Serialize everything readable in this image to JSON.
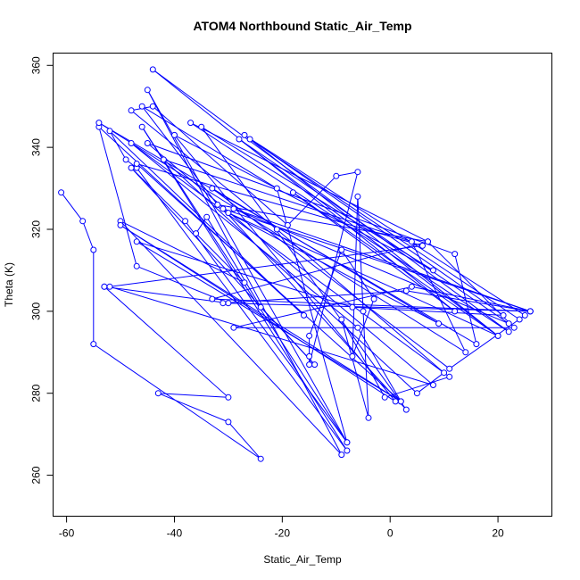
{
  "chart_data": {
    "type": "line",
    "title": "ATOM4 Northbound Static_Air_Temp",
    "xlabel": "Static_Air_Temp",
    "ylabel": "Theta (K)",
    "xlim": [
      -62.5,
      30
    ],
    "ylim": [
      250,
      363
    ],
    "x_ticks": [
      -60,
      -40,
      -20,
      0,
      20
    ],
    "y_ticks": [
      260,
      280,
      300,
      320,
      340,
      360
    ],
    "x_tick_labels": [
      "-60",
      "-40",
      "-20",
      "0",
      "20"
    ],
    "y_tick_labels": [
      "260",
      "280",
      "300",
      "320",
      "340",
      "360"
    ],
    "grid": false,
    "legend": "none",
    "marker": "open-circle",
    "color": "#0000ff",
    "series": [
      {
        "x": [
          -61,
          -57,
          -55,
          -55,
          -24,
          -30,
          -43,
          -30,
          -53,
          -53,
          -30,
          -47,
          -54,
          -16,
          -52,
          -49,
          -47,
          -8,
          -46,
          -8,
          -45,
          -9,
          -50,
          -27,
          -36,
          -34,
          -24,
          -14,
          -48,
          -38,
          -8,
          -21,
          -46,
          -32,
          7,
          -33,
          26,
          3,
          -31,
          26,
          4,
          -29,
          23,
          7,
          -37,
          22,
          -44,
          12,
          -18,
          20,
          -30,
          9,
          -33,
          11,
          25,
          -27,
          21,
          -7,
          -47,
          2,
          -6,
          -48,
          11,
          -1,
          -9,
          -4,
          -5,
          -6,
          -7,
          -3,
          -9,
          -15,
          -15,
          -15,
          -6,
          -10,
          -19,
          -44,
          -48,
          -21,
          10,
          5,
          -42,
          4,
          14,
          -54,
          16,
          12,
          -45,
          8,
          -52,
          6,
          -47,
          2,
          -50,
          1,
          -40,
          8,
          -35,
          3,
          -31,
          26,
          -29,
          22,
          -28,
          20,
          -26,
          24
        ],
        "y": [
          329,
          322,
          315,
          292,
          264,
          273,
          280,
          279,
          306,
          306,
          302,
          311,
          345,
          299,
          344,
          337,
          335,
          266,
          345,
          268,
          354,
          265,
          322,
          307,
          319,
          323,
          301,
          287,
          335,
          322,
          268,
          330,
          350,
          326,
          317,
          303,
          300,
          305,
          302,
          300,
          306,
          296,
          296,
          317,
          346,
          295,
          359,
          300,
          329,
          294,
          324,
          297,
          330,
          286,
          299,
          343,
          299,
          301,
          317,
          278,
          296,
          341,
          284,
          279,
          298,
          274,
          300,
          328,
          289,
          303,
          315,
          294,
          289,
          287,
          334,
          333,
          321,
          350,
          349,
          320,
          285,
          280,
          337,
          317,
          290,
          346,
          292,
          314,
          341,
          282,
          306,
          316,
          336,
          278,
          321,
          278,
          343,
          310,
          345,
          276,
          325,
          300,
          325,
          297,
          342,
          294,
          342,
          298
        ]
      }
    ]
  }
}
